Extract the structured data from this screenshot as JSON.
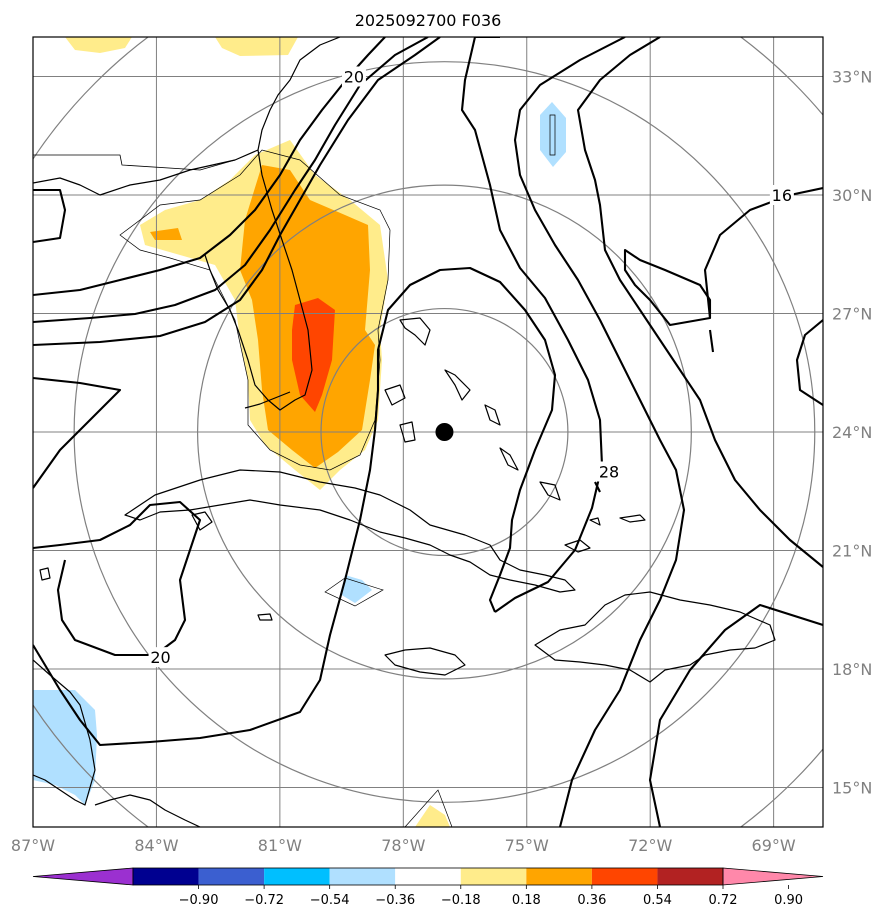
{
  "title": "2025092700 F036",
  "colors": {
    "background": "#ffffff",
    "grid": "#808080",
    "coast": "#000000",
    "contour": "#000000",
    "range_ring": "#808080",
    "storm_center": "#000000"
  },
  "map": {
    "lon_range": [
      -87,
      -67.8
    ],
    "lat_range": [
      14,
      34
    ],
    "lon_ticks": [
      -87,
      -84,
      -81,
      -78,
      -75,
      -72,
      -69
    ],
    "lat_ticks": [
      15,
      18,
      21,
      24,
      27,
      30,
      33
    ],
    "lon_labels": [
      "87°W",
      "84°W",
      "81°W",
      "78°W",
      "75°W",
      "72°W",
      "69°W"
    ],
    "lat_labels": [
      "15°N",
      "18°N",
      "21°N",
      "24°N",
      "27°N",
      "30°N",
      "33°N"
    ],
    "storm_center": {
      "lon": -77.0,
      "lat": 24.0
    },
    "range_rings_deg": [
      3,
      6,
      9,
      12
    ],
    "contour_labels": [
      {
        "text": "20",
        "lon": -79.2,
        "lat": 33.0
      },
      {
        "text": "16",
        "lon": -68.8,
        "lat": 30.0
      },
      {
        "text": "28",
        "lon": -73.0,
        "lat": 23.0
      },
      {
        "text": "20",
        "lon": -83.9,
        "lat": 18.3
      }
    ]
  },
  "colorbar": {
    "levels": [
      "−0.90",
      "−0.72",
      "−0.54",
      "−0.36",
      "−0.18",
      "0.18",
      "0.36",
      "0.54",
      "0.72",
      "0.90"
    ],
    "colors": [
      "#9b30d0",
      "#000090",
      "#3b5fd0",
      "#00bfff",
      "#b0e0ff",
      "#ffffff",
      "#ffec8b",
      "#ffa500",
      "#ff4500",
      "#b22222",
      "#ff88aa"
    ],
    "extend": "both"
  }
}
